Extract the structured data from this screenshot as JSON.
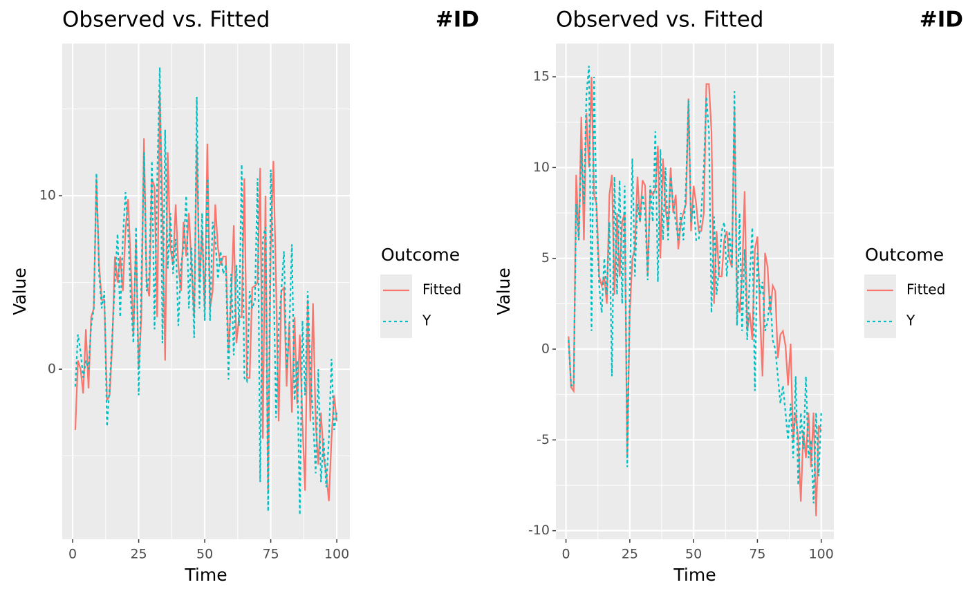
{
  "chart_data": [
    {
      "type": "line",
      "title": "Observed vs. Fitted",
      "annotation": "#ID",
      "x_label": "Time",
      "y_label": "Value",
      "legend_title": "Outcome",
      "legend_position": "right",
      "grid": true,
      "xlim": [
        -3.95,
        104.95
      ],
      "xticks": [
        0,
        25,
        50,
        75,
        100
      ],
      "xticks_minor": [
        12.5,
        37.5,
        62.5,
        87.5
      ],
      "ylim": [
        -9.8,
        18.77
      ],
      "yticks": [
        0,
        10
      ],
      "yticks_minor": [
        -5,
        5,
        15
      ],
      "x": [
        1,
        2,
        3,
        4,
        5,
        6,
        7,
        8,
        9,
        10,
        11,
        12,
        13,
        14,
        15,
        16,
        17,
        18,
        19,
        20,
        21,
        22,
        23,
        24,
        25,
        26,
        27,
        28,
        29,
        30,
        31,
        32,
        33,
        34,
        35,
        36,
        37,
        38,
        39,
        40,
        41,
        42,
        43,
        44,
        45,
        46,
        47,
        48,
        49,
        50,
        51,
        52,
        53,
        54,
        55,
        56,
        57,
        58,
        59,
        60,
        61,
        62,
        63,
        64,
        65,
        66,
        67,
        68,
        69,
        70,
        71,
        72,
        73,
        74,
        75,
        76,
        77,
        78,
        79,
        80,
        81,
        82,
        83,
        84,
        85,
        86,
        87,
        88,
        89,
        90,
        91,
        92,
        93,
        94,
        95,
        96,
        97,
        98,
        99,
        100
      ],
      "series": [
        {
          "name": "Fitted",
          "color": "#F8766D",
          "linetype": "solid",
          "values": [
            -3.5,
            0.5,
            0,
            -1.4,
            2.3,
            -1.1,
            3,
            3.5,
            11,
            6,
            4,
            4,
            -1.8,
            -1.5,
            1.5,
            6.5,
            5,
            6.5,
            4.5,
            8,
            9.8,
            6,
            2,
            7.5,
            0,
            3,
            13.3,
            5,
            4.2,
            11,
            10.5,
            3,
            16,
            9,
            0.5,
            12.5,
            7,
            6,
            9.5,
            6,
            4.5,
            8.5,
            6.5,
            9,
            6,
            3,
            13,
            5,
            8,
            3.5,
            13,
            3.5,
            4.5,
            9.5,
            7,
            6,
            6.5,
            6.5,
            1,
            4,
            8.3,
            1.5,
            3,
            3,
            11,
            -0.5,
            -0.5,
            4.7,
            4.8,
            5,
            11.6,
            -4,
            10,
            -7,
            7,
            12,
            5,
            -3,
            4.5,
            4.7,
            -1,
            2.7,
            -2.5,
            3,
            -2,
            2,
            -3,
            -7,
            4,
            -3,
            3.8,
            -3,
            -5.5,
            -2.5,
            -5,
            -6,
            -7.6,
            -4,
            -1.5,
            -3
          ]
        },
        {
          "name": "Y",
          "color": "#00BFC4",
          "linetype": "dashed",
          "values": [
            -1,
            2,
            1,
            -0.5,
            0.5,
            0,
            2.5,
            3.5,
            11.3,
            5.5,
            3.5,
            4.5,
            -3.3,
            -1,
            2,
            5,
            7.8,
            3,
            7.5,
            10.2,
            8,
            4,
            1.5,
            8.2,
            -1.5,
            5,
            12.5,
            4.5,
            5.5,
            12,
            2.3,
            11,
            17.4,
            1.5,
            13.8,
            5.8,
            9,
            5.5,
            7.5,
            2.5,
            6,
            7,
            10,
            3.5,
            7,
            1.8,
            15.7,
            3.5,
            9,
            2.8,
            11,
            2.8,
            8.5,
            7.5,
            5.2,
            6.8,
            5.5,
            6,
            -0.6,
            5.5,
            0.8,
            6,
            2.5,
            11.8,
            -0.5,
            -0.7,
            4.5,
            3.5,
            4,
            11,
            -6.5,
            7.5,
            8.2,
            -8.2,
            11.5,
            6,
            -2.8,
            2.5,
            4.5,
            6.8,
            0,
            2.2,
            7.2,
            -1.8,
            0.5,
            -8.4,
            2.8,
            -1.5,
            4.5,
            0,
            -2.8,
            -6,
            0,
            -6.5,
            -4,
            -6.8,
            -4,
            0.6,
            -3.5,
            -2.5
          ]
        }
      ]
    },
    {
      "type": "line",
      "title": "Observed vs. Fitted",
      "annotation": "#ID",
      "x_label": "Time",
      "y_label": "Value",
      "legend_title": "Outcome",
      "legend_position": "right",
      "grid": true,
      "xlim": [
        -3.95,
        104.95
      ],
      "xticks": [
        0,
        25,
        50,
        75,
        100
      ],
      "xticks_minor": [
        12.5,
        37.5,
        62.5,
        87.5
      ],
      "ylim": [
        -10.47,
        16.83
      ],
      "yticks": [
        -10,
        -5,
        0,
        5,
        10,
        15
      ],
      "yticks_minor": [
        -7.5,
        -2.5,
        2.5,
        7.5,
        12.5
      ],
      "x": [
        1,
        2,
        3,
        4,
        5,
        6,
        7,
        8,
        9,
        10,
        11,
        12,
        13,
        14,
        15,
        16,
        17,
        18,
        19,
        20,
        21,
        22,
        23,
        24,
        25,
        26,
        27,
        28,
        29,
        30,
        31,
        32,
        33,
        34,
        35,
        36,
        37,
        38,
        39,
        40,
        41,
        42,
        43,
        44,
        45,
        46,
        47,
        48,
        49,
        50,
        51,
        52,
        53,
        54,
        55,
        56,
        57,
        58,
        59,
        60,
        61,
        62,
        63,
        64,
        65,
        66,
        67,
        68,
        69,
        70,
        71,
        72,
        73,
        74,
        75,
        76,
        77,
        78,
        79,
        80,
        81,
        82,
        83,
        84,
        85,
        86,
        87,
        88,
        89,
        90,
        91,
        92,
        93,
        94,
        95,
        96,
        97,
        98,
        99,
        100
      ],
      "series": [
        {
          "name": "Fitted",
          "color": "#F8766D",
          "linetype": "solid",
          "values": [
            0.7,
            -2.1,
            -2.3,
            9.6,
            6,
            12.8,
            6,
            13,
            10,
            15,
            8.5,
            8,
            4,
            3.5,
            4,
            2.5,
            8.5,
            9.6,
            3,
            7.5,
            4,
            7,
            7.5,
            -6,
            2,
            5,
            5.5,
            9.5,
            7,
            9.3,
            9,
            4,
            8.8,
            8.5,
            8.8,
            11.2,
            5,
            10.5,
            7.8,
            6.5,
            10,
            7.5,
            8.5,
            5.5,
            7,
            7.5,
            8,
            13.8,
            6.5,
            9,
            8,
            6.5,
            6.5,
            7.5,
            14.6,
            14.6,
            12,
            2.5,
            6.5,
            4,
            4,
            6,
            6.5,
            5,
            4.5,
            13.2,
            3,
            2,
            4,
            8.7,
            1,
            2,
            0.5,
            5.5,
            6.2,
            2,
            -1.5,
            5.3,
            4.5,
            2,
            3.5,
            3.2,
            -0.5,
            0.8,
            1,
            0.2,
            -2,
            0.3,
            -5,
            -3.5,
            -5,
            -8.4,
            -4.5,
            -6,
            -3.5,
            -6.5,
            -3.5,
            -9.2,
            -4.2,
            -4.5
          ]
        },
        {
          "name": "Y",
          "color": "#00BFC4",
          "linetype": "dashed",
          "values": [
            0.5,
            -2,
            -2,
            8,
            6,
            11,
            8,
            14,
            15.6,
            1,
            15,
            7,
            3.5,
            2,
            5,
            3,
            7,
            -1.5,
            9.5,
            3,
            9.3,
            2.5,
            9,
            -6.5,
            3.5,
            10.5,
            4,
            8,
            7,
            8.5,
            7.5,
            3.8,
            9,
            7,
            12,
            3.7,
            11,
            6,
            10,
            6,
            9.5,
            8,
            7,
            6,
            7.5,
            6,
            9,
            13.7,
            7,
            8,
            6,
            6,
            7.5,
            10,
            13.9,
            12,
            2,
            7.3,
            3,
            4.5,
            6.5,
            7,
            4,
            6.5,
            4.5,
            14.2,
            1.3,
            7.5,
            1,
            5.5,
            0.5,
            4,
            6.7,
            -2.3,
            5.3,
            3,
            3.7,
            1,
            1.5,
            3,
            0.5,
            0,
            -1.5,
            -3,
            -2,
            -3.5,
            -5,
            -3,
            -6,
            -1.5,
            -7.5,
            -3.5,
            -5.5,
            -1.5,
            -6,
            -5,
            -8.5,
            -3.5,
            -7,
            -3.5
          ]
        }
      ]
    }
  ]
}
